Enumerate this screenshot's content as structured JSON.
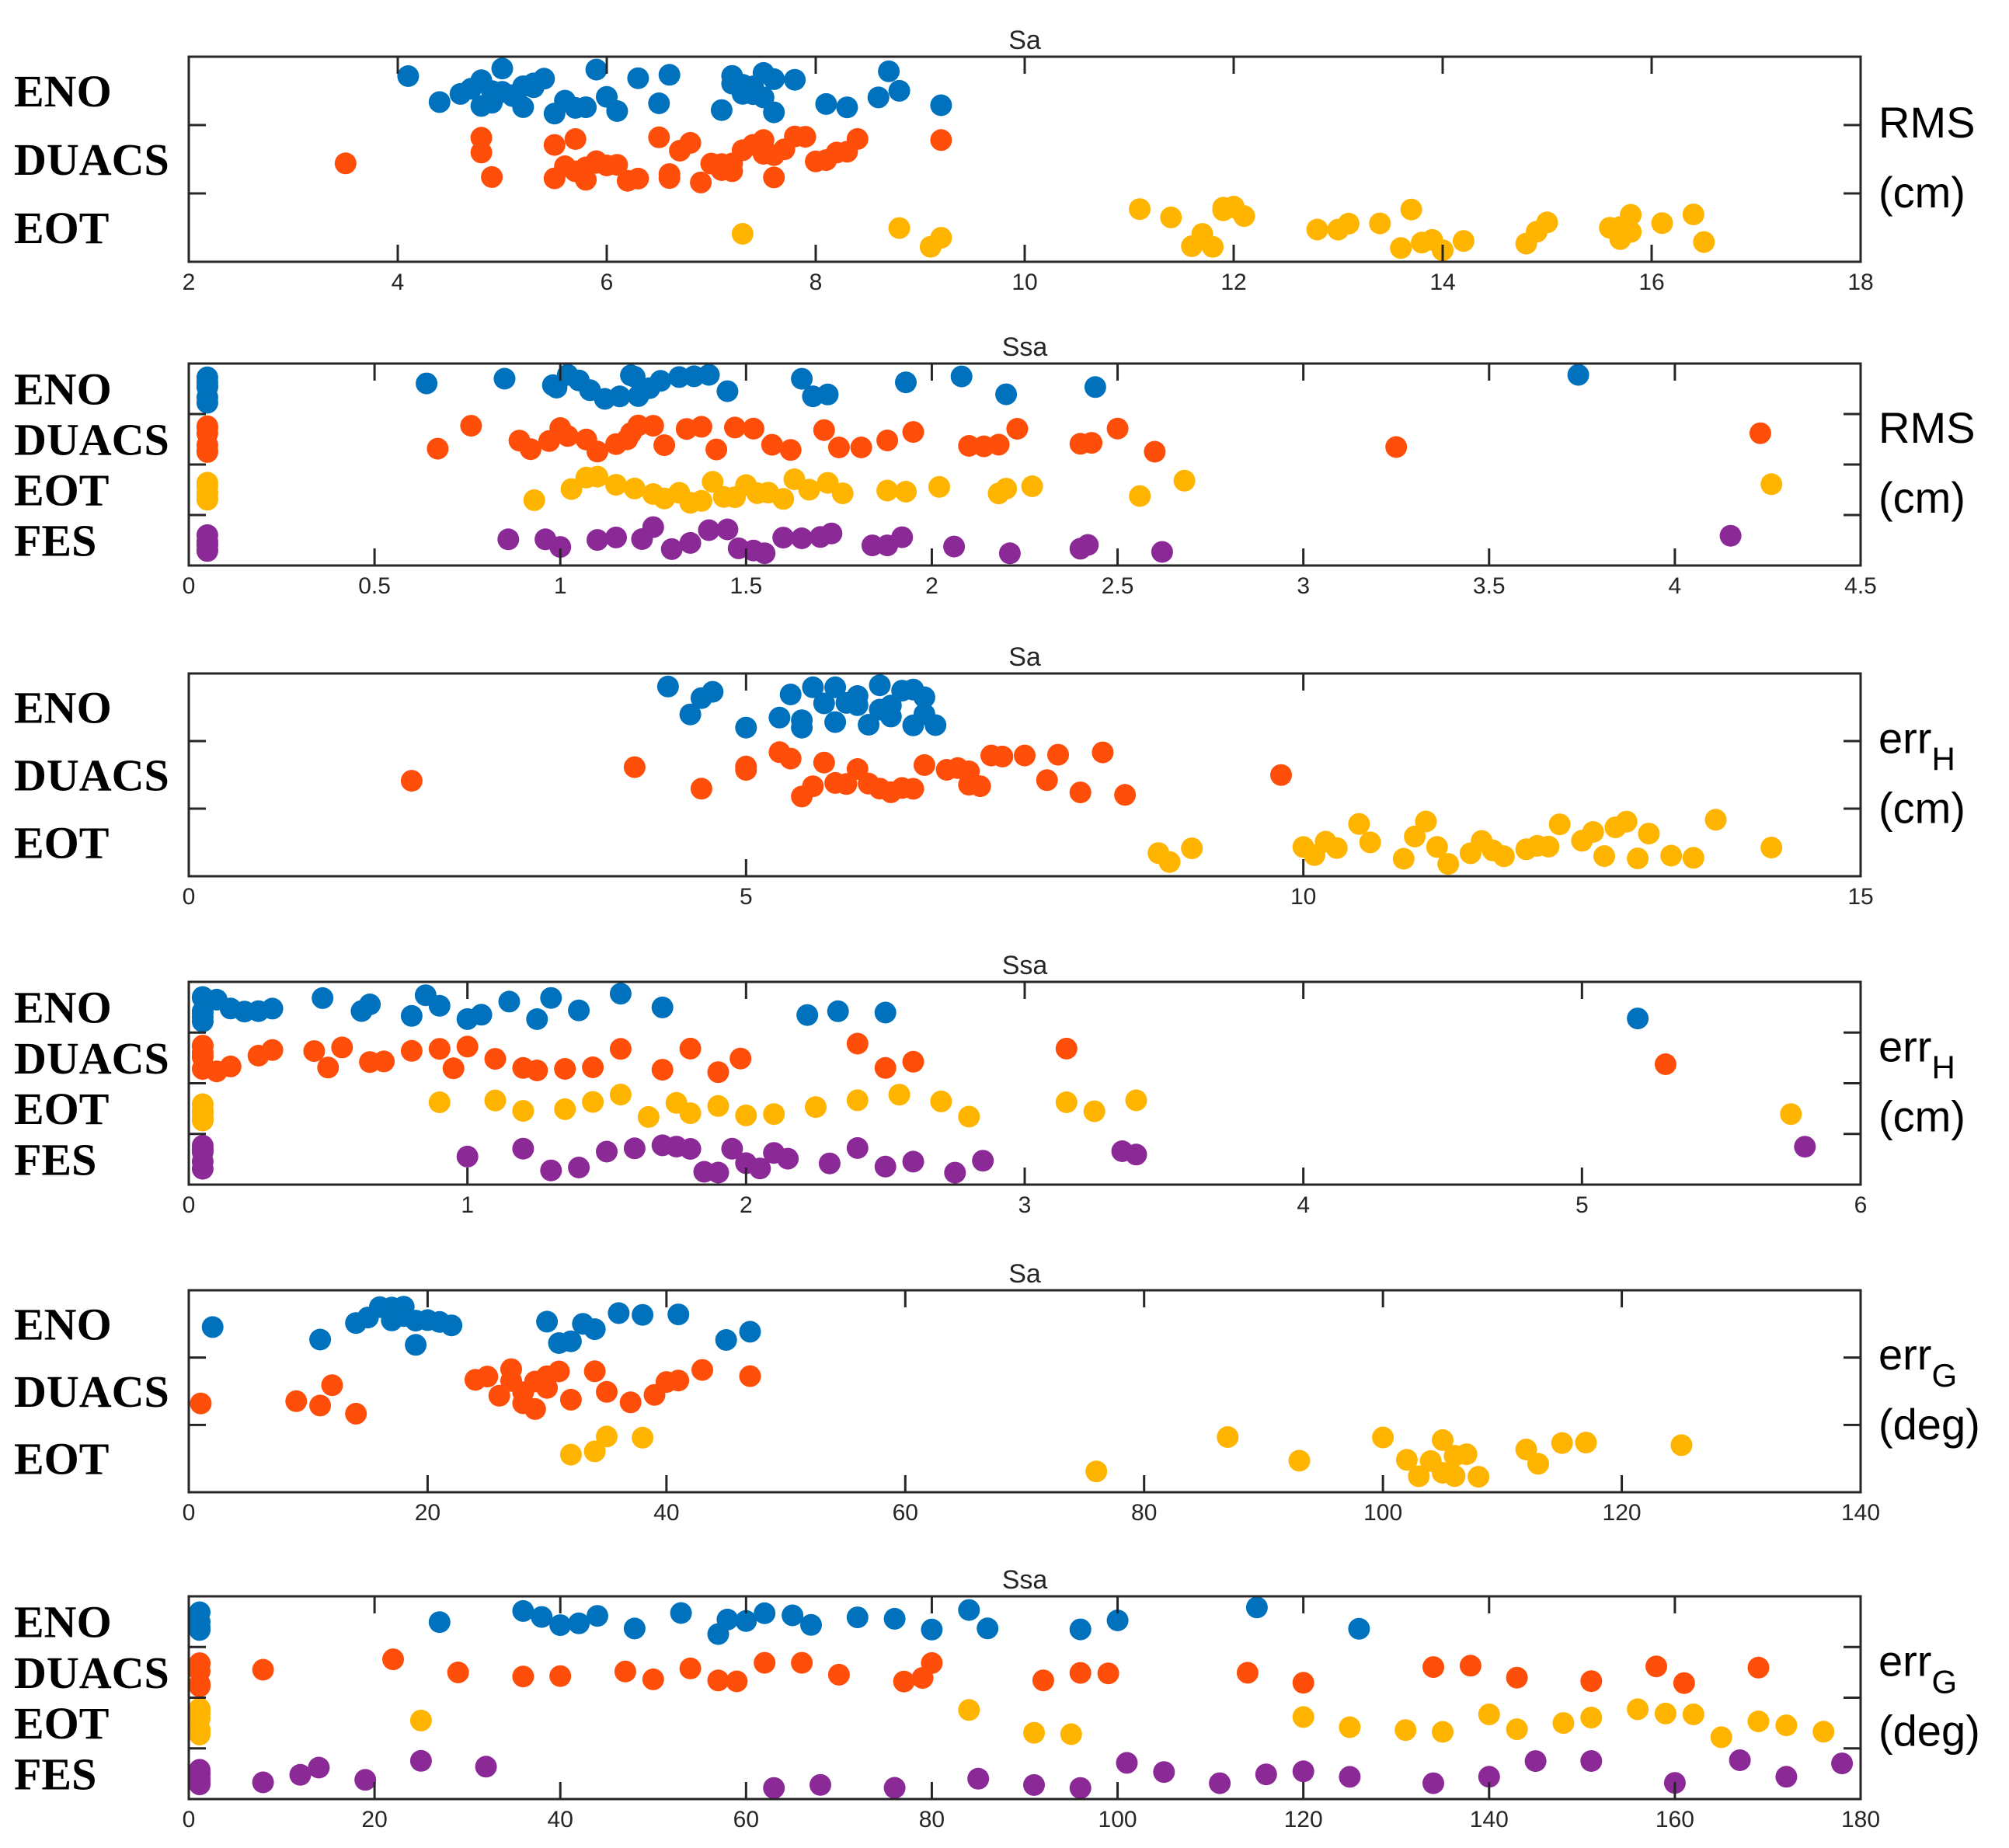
{
  "colors": {
    "ENO": "#0072BD",
    "DUACS": "#FF4E0A",
    "EOT": "#FFB400",
    "FES": "#8B2A97"
  },
  "chart_data": [
    {
      "type": "scatter",
      "title": "Sa",
      "rows": [
        "ENO",
        "DUACS",
        "EOT"
      ],
      "ylabel": "RMS",
      "ylabel_sub": "",
      "unit": "(cm)",
      "xlim": [
        2,
        18
      ],
      "xticks": [
        2,
        4,
        6,
        8,
        10,
        12,
        14,
        16,
        18
      ],
      "xtick_labels": [
        "2",
        "4",
        "6",
        "8",
        "10",
        "12",
        "14",
        "16",
        "18"
      ],
      "series": [
        {
          "name": "ENO",
          "values": [
            4.1,
            4.4,
            4.6,
            4.7,
            4.8,
            4.8,
            4.9,
            4.9,
            5.0,
            5.0,
            5.0,
            5.1,
            5.1,
            5.2,
            5.2,
            5.3,
            5.3,
            5.4,
            5.5,
            5.6,
            5.7,
            5.8,
            5.9,
            6.0,
            6.1,
            6.3,
            6.5,
            6.6,
            7.1,
            7.2,
            7.2,
            7.3,
            7.3,
            7.4,
            7.4,
            7.5,
            7.5,
            7.6,
            7.6,
            7.8,
            8.1,
            8.3,
            8.6,
            8.7,
            8.8,
            9.2
          ]
        },
        {
          "name": "DUACS",
          "values": [
            3.5,
            4.8,
            4.8,
            4.9,
            5.5,
            5.5,
            5.6,
            5.7,
            5.7,
            5.8,
            5.8,
            5.9,
            5.9,
            6.0,
            6.1,
            6.2,
            6.3,
            6.5,
            6.6,
            6.6,
            6.7,
            6.8,
            6.9,
            7.0,
            7.1,
            7.1,
            7.2,
            7.2,
            7.3,
            7.4,
            7.5,
            7.5,
            7.6,
            7.6,
            7.7,
            7.8,
            7.9,
            8.0,
            8.1,
            8.2,
            8.3,
            8.4,
            9.2
          ]
        },
        {
          "name": "EOT",
          "values": [
            7.3,
            8.8,
            9.1,
            9.2,
            11.1,
            11.4,
            11.6,
            11.7,
            11.8,
            11.9,
            11.9,
            12.0,
            12.0,
            12.1,
            12.8,
            13.0,
            13.1,
            13.4,
            13.6,
            13.7,
            13.8,
            13.9,
            14.0,
            14.2,
            14.8,
            14.9,
            15.0,
            15.6,
            15.7,
            15.7,
            15.8,
            15.8,
            16.1,
            16.4,
            16.5
          ]
        }
      ]
    },
    {
      "type": "scatter",
      "title": "Ssa",
      "rows": [
        "ENO",
        "DUACS",
        "EOT",
        "FES"
      ],
      "ylabel": "RMS",
      "ylabel_sub": "",
      "unit": "(cm)",
      "xlim": [
        0,
        4.5
      ],
      "xticks": [
        0,
        0.5,
        1,
        1.5,
        2,
        2.5,
        3,
        3.5,
        4,
        4.5
      ],
      "xtick_labels": [
        "0",
        "0.5",
        "1",
        "1.5",
        "2",
        "2.5",
        "3",
        "3.5",
        "4",
        "4.5"
      ],
      "series": [
        {
          "name": "ENO",
          "values": [
            0.05,
            0.05,
            0.05,
            0.05,
            0.05,
            0.05,
            0.64,
            0.85,
            0.98,
            0.99,
            1.02,
            1.05,
            1.08,
            1.12,
            1.16,
            1.19,
            1.2,
            1.21,
            1.24,
            1.27,
            1.32,
            1.36,
            1.4,
            1.45,
            1.65,
            1.68,
            1.72,
            1.93,
            2.08,
            2.2,
            2.44,
            3.74
          ]
        },
        {
          "name": "DUACS",
          "values": [
            0.05,
            0.05,
            0.05,
            0.05,
            0.05,
            0.05,
            0.67,
            0.76,
            0.89,
            0.92,
            0.97,
            1.0,
            1.02,
            1.07,
            1.1,
            1.15,
            1.18,
            1.19,
            1.21,
            1.25,
            1.28,
            1.34,
            1.38,
            1.42,
            1.47,
            1.52,
            1.57,
            1.62,
            1.71,
            1.75,
            1.81,
            1.88,
            1.95,
            2.1,
            2.14,
            2.18,
            2.23,
            2.4,
            2.43,
            2.5,
            2.6,
            3.25,
            4.23
          ]
        },
        {
          "name": "EOT",
          "values": [
            0.05,
            0.05,
            0.05,
            0.05,
            0.05,
            0.05,
            0.93,
            1.03,
            1.07,
            1.1,
            1.15,
            1.2,
            1.25,
            1.28,
            1.32,
            1.35,
            1.38,
            1.41,
            1.44,
            1.47,
            1.5,
            1.53,
            1.56,
            1.6,
            1.63,
            1.67,
            1.72,
            1.76,
            1.88,
            1.93,
            2.02,
            2.18,
            2.2,
            2.27,
            2.56,
            2.68,
            4.26
          ]
        },
        {
          "name": "FES",
          "values": [
            0.05,
            0.05,
            0.05,
            0.05,
            0.05,
            0.05,
            0.86,
            0.96,
            1.0,
            1.1,
            1.15,
            1.22,
            1.25,
            1.3,
            1.35,
            1.4,
            1.45,
            1.48,
            1.52,
            1.55,
            1.6,
            1.65,
            1.7,
            1.73,
            1.84,
            1.88,
            1.92,
            2.06,
            2.21,
            2.4,
            2.42,
            2.62,
            4.15
          ]
        }
      ]
    },
    {
      "type": "scatter",
      "title": "Sa",
      "rows": [
        "ENO",
        "DUACS",
        "EOT"
      ],
      "ylabel": "err",
      "ylabel_sub": "H",
      "unit": "(cm)",
      "xlim": [
        0,
        15
      ],
      "xticks": [
        0,
        5,
        10,
        15
      ],
      "xtick_labels": [
        "0",
        "5",
        "10",
        "15"
      ],
      "series": [
        {
          "name": "ENO",
          "values": [
            4.3,
            4.5,
            4.6,
            4.7,
            5.0,
            5.3,
            5.4,
            5.5,
            5.5,
            5.6,
            5.7,
            5.8,
            5.8,
            5.9,
            6.0,
            6.0,
            6.1,
            6.2,
            6.2,
            6.3,
            6.3,
            6.4,
            6.5,
            6.5,
            6.6,
            6.6,
            6.7
          ]
        },
        {
          "name": "DUACS",
          "values": [
            2.0,
            4.0,
            4.6,
            5.0,
            5.0,
            5.3,
            5.4,
            5.5,
            5.6,
            5.7,
            5.8,
            5.9,
            6.0,
            6.1,
            6.2,
            6.3,
            6.4,
            6.5,
            6.6,
            6.8,
            6.9,
            7.0,
            7.0,
            7.1,
            7.2,
            7.3,
            7.5,
            7.7,
            7.8,
            8.0,
            8.2,
            8.4,
            9.8
          ]
        },
        {
          "name": "EOT",
          "values": [
            8.7,
            8.8,
            9.0,
            10.0,
            10.1,
            10.2,
            10.3,
            10.5,
            10.6,
            10.9,
            11.0,
            11.1,
            11.2,
            11.3,
            11.5,
            11.6,
            11.7,
            11.8,
            12.0,
            12.1,
            12.2,
            12.3,
            12.5,
            12.6,
            12.7,
            12.8,
            12.9,
            13.0,
            13.1,
            13.3,
            13.5,
            13.7,
            14.2
          ]
        }
      ]
    },
    {
      "type": "scatter",
      "title": "Ssa",
      "rows": [
        "ENO",
        "DUACS",
        "EOT",
        "FES"
      ],
      "ylabel": "err",
      "ylabel_sub": "H",
      "unit": "(cm)",
      "xlim": [
        0,
        6
      ],
      "xticks": [
        0,
        1,
        2,
        3,
        4,
        5,
        6
      ],
      "xtick_labels": [
        "0",
        "1",
        "2",
        "3",
        "4",
        "5",
        "6"
      ],
      "series": [
        {
          "name": "ENO",
          "values": [
            0.05,
            0.05,
            0.05,
            0.05,
            0.05,
            0.05,
            0.1,
            0.15,
            0.2,
            0.25,
            0.3,
            0.48,
            0.62,
            0.65,
            0.8,
            0.85,
            0.9,
            1.0,
            1.05,
            1.15,
            1.25,
            1.3,
            1.4,
            1.55,
            1.7,
            2.22,
            2.33,
            2.5,
            5.2
          ]
        },
        {
          "name": "DUACS",
          "values": [
            0.05,
            0.05,
            0.05,
            0.05,
            0.05,
            0.05,
            0.1,
            0.15,
            0.25,
            0.3,
            0.45,
            0.5,
            0.55,
            0.65,
            0.7,
            0.8,
            0.9,
            0.95,
            1.0,
            1.1,
            1.2,
            1.25,
            1.35,
            1.45,
            1.55,
            1.7,
            1.8,
            1.9,
            1.98,
            2.4,
            2.5,
            2.6,
            3.15,
            5.3
          ]
        },
        {
          "name": "EOT",
          "values": [
            0.05,
            0.05,
            0.05,
            0.05,
            0.05,
            0.05,
            0.9,
            1.1,
            1.2,
            1.35,
            1.45,
            1.55,
            1.65,
            1.75,
            1.8,
            1.9,
            2.0,
            2.1,
            2.25,
            2.4,
            2.55,
            2.7,
            2.8,
            3.15,
            3.25,
            3.4,
            5.75
          ]
        },
        {
          "name": "FES",
          "values": [
            0.05,
            0.05,
            0.05,
            0.05,
            0.05,
            0.05,
            1.0,
            1.2,
            1.3,
            1.4,
            1.5,
            1.6,
            1.7,
            1.75,
            1.8,
            1.85,
            1.9,
            1.95,
            2.0,
            2.05,
            2.1,
            2.15,
            2.3,
            2.4,
            2.5,
            2.6,
            2.75,
            2.85,
            3.35,
            3.4,
            5.8
          ]
        }
      ]
    },
    {
      "type": "scatter",
      "title": "Sa",
      "rows": [
        "ENO",
        "DUACS",
        "EOT"
      ],
      "ylabel": "err",
      "ylabel_sub": "G",
      "unit": "(deg)",
      "xlim": [
        0,
        140
      ],
      "xticks": [
        0,
        20,
        40,
        60,
        80,
        100,
        120,
        140
      ],
      "xtick_labels": [
        "0",
        "20",
        "40",
        "60",
        "80",
        "100",
        "120",
        "140"
      ],
      "series": [
        {
          "name": "ENO",
          "values": [
            2,
            11,
            14,
            15,
            16,
            17,
            17,
            18,
            18,
            19,
            19,
            20,
            21,
            22,
            30,
            31,
            32,
            33,
            34,
            36,
            38,
            41,
            45,
            47
          ]
        },
        {
          "name": "DUACS",
          "values": [
            1,
            9,
            11,
            12,
            14,
            24,
            25,
            26,
            27,
            27,
            28,
            28,
            29,
            29,
            30,
            30,
            31,
            32,
            34,
            35,
            37,
            39,
            40,
            41,
            43,
            47
          ]
        },
        {
          "name": "EOT",
          "values": [
            32,
            34,
            35,
            38,
            76,
            87,
            93,
            100,
            102,
            103,
            104,
            105,
            105,
            106,
            106,
            107,
            108,
            112,
            113,
            115,
            117,
            125
          ]
        }
      ]
    },
    {
      "type": "scatter",
      "title": "Ssa",
      "rows": [
        "ENO",
        "DUACS",
        "EOT",
        "FES"
      ],
      "ylabel": "err",
      "ylabel_sub": "G",
      "unit": "(deg)",
      "xlim": [
        0,
        180
      ],
      "xticks": [
        0,
        20,
        40,
        60,
        80,
        100,
        120,
        140,
        160,
        180
      ],
      "xtick_labels": [
        "0",
        "20",
        "40",
        "60",
        "80",
        "100",
        "120",
        "140",
        "160",
        "180"
      ],
      "series": [
        {
          "name": "ENO",
          "values": [
            1,
            1,
            1,
            1,
            1,
            1,
            27,
            36,
            38,
            40,
            42,
            44,
            48,
            53,
            57,
            58,
            60,
            62,
            65,
            67,
            72,
            76,
            80,
            84,
            86,
            96,
            100,
            115,
            126
          ]
        },
        {
          "name": "DUACS",
          "values": [
            1,
            1,
            1,
            1,
            1,
            1,
            8,
            22,
            29,
            36,
            40,
            47,
            50,
            54,
            57,
            59,
            62,
            66,
            70,
            77,
            79,
            80,
            92,
            96,
            99,
            114,
            120,
            134,
            138,
            143,
            151,
            158,
            161,
            169
          ]
        },
        {
          "name": "EOT",
          "values": [
            1,
            1,
            1,
            1,
            1,
            1,
            25,
            84,
            91,
            95,
            120,
            125,
            131,
            135,
            140,
            143,
            148,
            151,
            156,
            159,
            162,
            165,
            169,
            172,
            176
          ]
        },
        {
          "name": "FES",
          "values": [
            1,
            1,
            1,
            1,
            1,
            1,
            8,
            12,
            14,
            19,
            25,
            32,
            63,
            68,
            76,
            85,
            91,
            96,
            101,
            105,
            111,
            116,
            120,
            125,
            134,
            140,
            145,
            151,
            160,
            167,
            172,
            178
          ]
        }
      ]
    }
  ]
}
